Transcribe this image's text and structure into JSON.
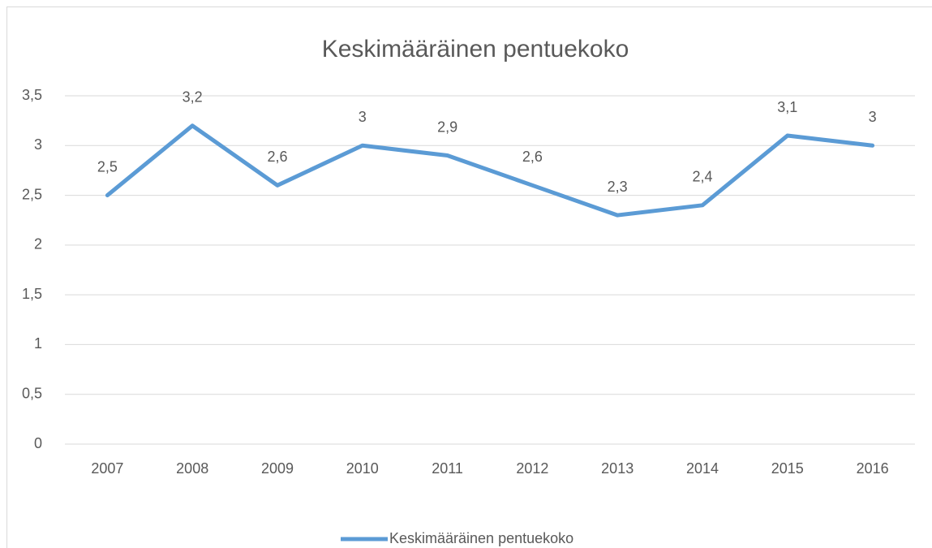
{
  "chart_data": {
    "type": "line",
    "title": "Keskimääräinen pentuekoko",
    "categories": [
      "2007",
      "2008",
      "2009",
      "2010",
      "2011",
      "2012",
      "2013",
      "2014",
      "2015",
      "2016"
    ],
    "series": [
      {
        "name": "Keskimääräinen pentuekoko",
        "color": "#5b9bd5",
        "values": [
          2.5,
          3.2,
          2.6,
          3,
          2.9,
          2.6,
          2.3,
          2.4,
          3.1,
          3
        ],
        "value_labels": [
          "2,5",
          "3,2",
          "2,6",
          "3",
          "2,9",
          "2,6",
          "2,3",
          "2,4",
          "3,1",
          "3"
        ]
      }
    ],
    "ylim": [
      0,
      3.5
    ],
    "yticks": [
      0,
      {
        "value": 0.5,
        "label": "0,5"
      },
      1,
      {
        "value": 1.5,
        "label": "1,5"
      },
      2,
      {
        "value": 2.5,
        "label": "2,5"
      },
      3,
      {
        "value": 3.5,
        "label": "3,5"
      }
    ],
    "grid": true,
    "legend": "bottom"
  }
}
